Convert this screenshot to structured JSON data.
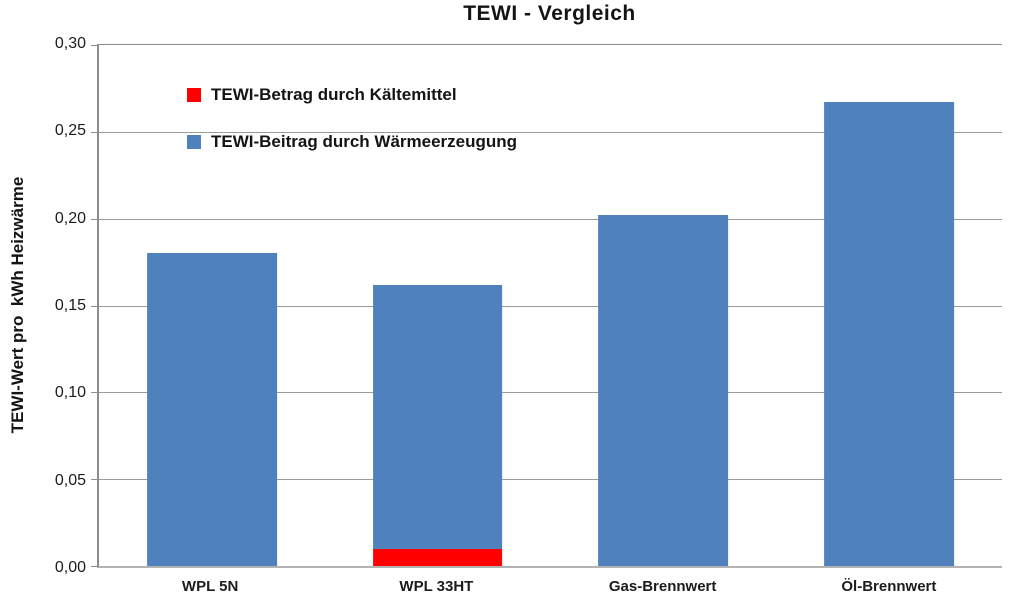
{
  "title": "TEWI - Vergleich",
  "colors": {
    "gridline": "#9a9a9a",
    "axis": "#8c8c8c",
    "refrigerant_red": "#ff0000",
    "heat_blue": "#4f81bd",
    "text": "#141414"
  },
  "chart_data": {
    "type": "bar",
    "stacked": true,
    "title": "TEWI - Vergleich",
    "ylabel": "TEWI-Wert pro  kWh Heizwärme",
    "xlabel": "",
    "categories": [
      "WPL 5N",
      "WPL 33HT",
      "Gas-Brennwert",
      "Öl-Brennwert"
    ],
    "series": [
      {
        "name": "TEWI-Betrag durch Kältemittel",
        "color": "#ff0000",
        "values": [
          0,
          0.01,
          0,
          0
        ]
      },
      {
        "name": "TEWI-Beitrag durch Wärmeerzeugung",
        "color": "#4f81bd",
        "values": [
          0.18,
          0.152,
          0.202,
          0.267
        ]
      }
    ],
    "ylim": [
      0,
      0.3
    ],
    "ytick_step": 0.05,
    "ytick_labels": [
      "0,00",
      "0,05",
      "0,10",
      "0,15",
      "0,20",
      "0,25",
      "0,30"
    ],
    "grid": true,
    "legend_position": "inside-top-left"
  }
}
